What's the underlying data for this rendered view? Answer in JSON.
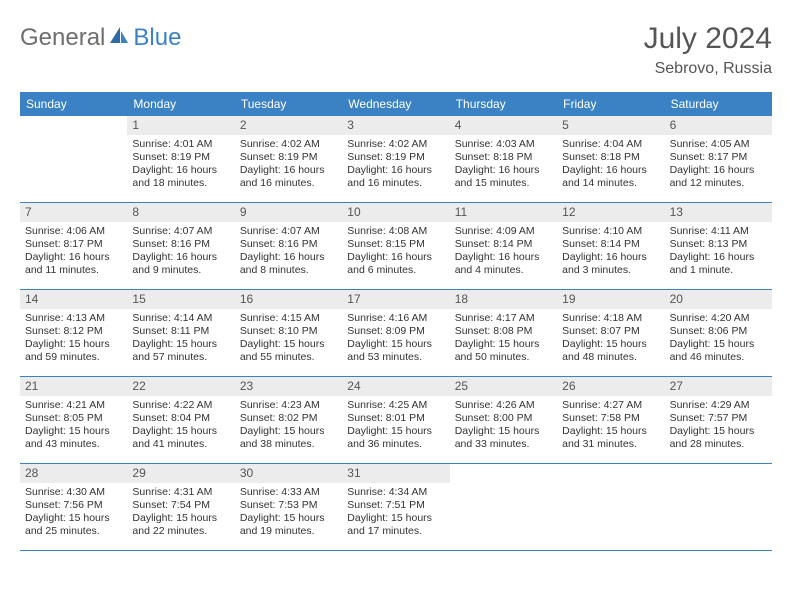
{
  "logo": {
    "part1": "General",
    "part2": "Blue"
  },
  "title": "July 2024",
  "location": "Sebrovo, Russia",
  "colors": {
    "header_bg": "#3b82c4",
    "header_text": "#ffffff",
    "daynum_bg": "#ececec",
    "daynum_text": "#555555",
    "body_text": "#333333",
    "rule": "#3b82c4"
  },
  "day_names": [
    "Sunday",
    "Monday",
    "Tuesday",
    "Wednesday",
    "Thursday",
    "Friday",
    "Saturday"
  ],
  "weeks": [
    [
      null,
      {
        "n": "1",
        "sr": "Sunrise: 4:01 AM",
        "ss": "Sunset: 8:19 PM",
        "d1": "Daylight: 16 hours",
        "d2": "and 18 minutes."
      },
      {
        "n": "2",
        "sr": "Sunrise: 4:02 AM",
        "ss": "Sunset: 8:19 PM",
        "d1": "Daylight: 16 hours",
        "d2": "and 16 minutes."
      },
      {
        "n": "3",
        "sr": "Sunrise: 4:02 AM",
        "ss": "Sunset: 8:19 PM",
        "d1": "Daylight: 16 hours",
        "d2": "and 16 minutes."
      },
      {
        "n": "4",
        "sr": "Sunrise: 4:03 AM",
        "ss": "Sunset: 8:18 PM",
        "d1": "Daylight: 16 hours",
        "d2": "and 15 minutes."
      },
      {
        "n": "5",
        "sr": "Sunrise: 4:04 AM",
        "ss": "Sunset: 8:18 PM",
        "d1": "Daylight: 16 hours",
        "d2": "and 14 minutes."
      },
      {
        "n": "6",
        "sr": "Sunrise: 4:05 AM",
        "ss": "Sunset: 8:17 PM",
        "d1": "Daylight: 16 hours",
        "d2": "and 12 minutes."
      }
    ],
    [
      {
        "n": "7",
        "sr": "Sunrise: 4:06 AM",
        "ss": "Sunset: 8:17 PM",
        "d1": "Daylight: 16 hours",
        "d2": "and 11 minutes."
      },
      {
        "n": "8",
        "sr": "Sunrise: 4:07 AM",
        "ss": "Sunset: 8:16 PM",
        "d1": "Daylight: 16 hours",
        "d2": "and 9 minutes."
      },
      {
        "n": "9",
        "sr": "Sunrise: 4:07 AM",
        "ss": "Sunset: 8:16 PM",
        "d1": "Daylight: 16 hours",
        "d2": "and 8 minutes."
      },
      {
        "n": "10",
        "sr": "Sunrise: 4:08 AM",
        "ss": "Sunset: 8:15 PM",
        "d1": "Daylight: 16 hours",
        "d2": "and 6 minutes."
      },
      {
        "n": "11",
        "sr": "Sunrise: 4:09 AM",
        "ss": "Sunset: 8:14 PM",
        "d1": "Daylight: 16 hours",
        "d2": "and 4 minutes."
      },
      {
        "n": "12",
        "sr": "Sunrise: 4:10 AM",
        "ss": "Sunset: 8:14 PM",
        "d1": "Daylight: 16 hours",
        "d2": "and 3 minutes."
      },
      {
        "n": "13",
        "sr": "Sunrise: 4:11 AM",
        "ss": "Sunset: 8:13 PM",
        "d1": "Daylight: 16 hours",
        "d2": "and 1 minute."
      }
    ],
    [
      {
        "n": "14",
        "sr": "Sunrise: 4:13 AM",
        "ss": "Sunset: 8:12 PM",
        "d1": "Daylight: 15 hours",
        "d2": "and 59 minutes."
      },
      {
        "n": "15",
        "sr": "Sunrise: 4:14 AM",
        "ss": "Sunset: 8:11 PM",
        "d1": "Daylight: 15 hours",
        "d2": "and 57 minutes."
      },
      {
        "n": "16",
        "sr": "Sunrise: 4:15 AM",
        "ss": "Sunset: 8:10 PM",
        "d1": "Daylight: 15 hours",
        "d2": "and 55 minutes."
      },
      {
        "n": "17",
        "sr": "Sunrise: 4:16 AM",
        "ss": "Sunset: 8:09 PM",
        "d1": "Daylight: 15 hours",
        "d2": "and 53 minutes."
      },
      {
        "n": "18",
        "sr": "Sunrise: 4:17 AM",
        "ss": "Sunset: 8:08 PM",
        "d1": "Daylight: 15 hours",
        "d2": "and 50 minutes."
      },
      {
        "n": "19",
        "sr": "Sunrise: 4:18 AM",
        "ss": "Sunset: 8:07 PM",
        "d1": "Daylight: 15 hours",
        "d2": "and 48 minutes."
      },
      {
        "n": "20",
        "sr": "Sunrise: 4:20 AM",
        "ss": "Sunset: 8:06 PM",
        "d1": "Daylight: 15 hours",
        "d2": "and 46 minutes."
      }
    ],
    [
      {
        "n": "21",
        "sr": "Sunrise: 4:21 AM",
        "ss": "Sunset: 8:05 PM",
        "d1": "Daylight: 15 hours",
        "d2": "and 43 minutes."
      },
      {
        "n": "22",
        "sr": "Sunrise: 4:22 AM",
        "ss": "Sunset: 8:04 PM",
        "d1": "Daylight: 15 hours",
        "d2": "and 41 minutes."
      },
      {
        "n": "23",
        "sr": "Sunrise: 4:23 AM",
        "ss": "Sunset: 8:02 PM",
        "d1": "Daylight: 15 hours",
        "d2": "and 38 minutes."
      },
      {
        "n": "24",
        "sr": "Sunrise: 4:25 AM",
        "ss": "Sunset: 8:01 PM",
        "d1": "Daylight: 15 hours",
        "d2": "and 36 minutes."
      },
      {
        "n": "25",
        "sr": "Sunrise: 4:26 AM",
        "ss": "Sunset: 8:00 PM",
        "d1": "Daylight: 15 hours",
        "d2": "and 33 minutes."
      },
      {
        "n": "26",
        "sr": "Sunrise: 4:27 AM",
        "ss": "Sunset: 7:58 PM",
        "d1": "Daylight: 15 hours",
        "d2": "and 31 minutes."
      },
      {
        "n": "27",
        "sr": "Sunrise: 4:29 AM",
        "ss": "Sunset: 7:57 PM",
        "d1": "Daylight: 15 hours",
        "d2": "and 28 minutes."
      }
    ],
    [
      {
        "n": "28",
        "sr": "Sunrise: 4:30 AM",
        "ss": "Sunset: 7:56 PM",
        "d1": "Daylight: 15 hours",
        "d2": "and 25 minutes."
      },
      {
        "n": "29",
        "sr": "Sunrise: 4:31 AM",
        "ss": "Sunset: 7:54 PM",
        "d1": "Daylight: 15 hours",
        "d2": "and 22 minutes."
      },
      {
        "n": "30",
        "sr": "Sunrise: 4:33 AM",
        "ss": "Sunset: 7:53 PM",
        "d1": "Daylight: 15 hours",
        "d2": "and 19 minutes."
      },
      {
        "n": "31",
        "sr": "Sunrise: 4:34 AM",
        "ss": "Sunset: 7:51 PM",
        "d1": "Daylight: 15 hours",
        "d2": "and 17 minutes."
      },
      null,
      null,
      null
    ]
  ]
}
